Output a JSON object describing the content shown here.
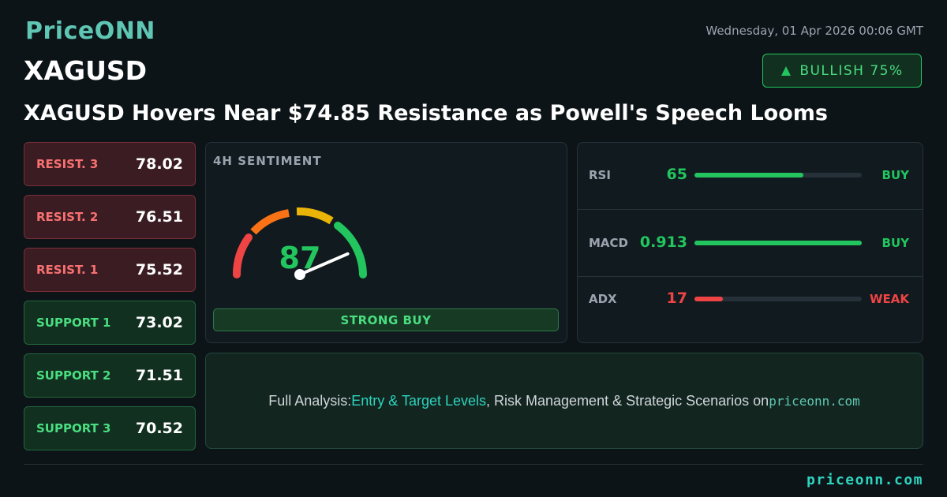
{
  "header": {
    "brand": "PriceONN",
    "date": "Wednesday, 01 Apr 2026 00:06 GMT",
    "symbol": "XAGUSD",
    "badge": "BULLISH 75%",
    "headline": "XAGUSD Hovers Near $74.85 Resistance as Powell's Speech Looms"
  },
  "levels": [
    {
      "label": "RESIST. 3",
      "value": "78.02",
      "kind": "resistance"
    },
    {
      "label": "RESIST. 2",
      "value": "76.51",
      "kind": "resistance"
    },
    {
      "label": "RESIST. 1",
      "value": "75.52",
      "kind": "resistance"
    },
    {
      "label": "SUPPORT 1",
      "value": "73.02",
      "kind": "support"
    },
    {
      "label": "SUPPORT 2",
      "value": "71.51",
      "kind": "support"
    },
    {
      "label": "SUPPORT 3",
      "value": "70.52",
      "kind": "support"
    }
  ],
  "gauge": {
    "title": "4H SENTIMENT",
    "value": 87,
    "verdict": "STRONG BUY"
  },
  "indicators": [
    {
      "name": "RSI",
      "value": 65,
      "signal": "BUY",
      "color": "#22c55e"
    },
    {
      "name": "MACD",
      "value": 0.913,
      "signal": "BUY",
      "color": "#22c55e"
    },
    {
      "name": "ADX",
      "value": 17,
      "signal": "WEAK",
      "color": "#ef4444"
    }
  ],
  "cta": {
    "lead": "Full Analysis:",
    "highlight": "Entry & Target Levels",
    "rest": ", Risk Management & Strategic Scenarios on",
    "site": "priceonn.com"
  },
  "footer": {
    "site": "priceonn.com"
  }
}
